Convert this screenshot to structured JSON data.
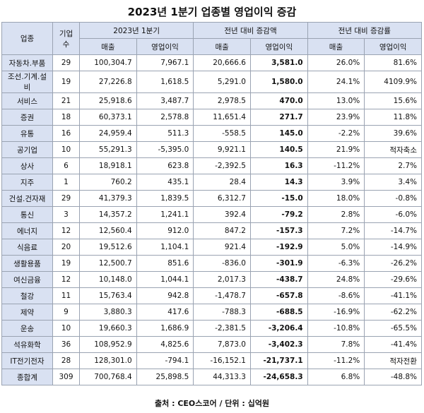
{
  "title": "2023년 1분기 업종별 영업이익 증감",
  "headers": {
    "industry": "업종",
    "count": "기업수",
    "group1": "2023년 1분기",
    "group2": "전년 대비 증감액",
    "group3": "전년 대비 증감률",
    "sales": "매출",
    "op": "영업이익"
  },
  "rows": [
    {
      "industry": "자동차.부품",
      "count": "29",
      "sales": "100,304.7",
      "op": "7,967.1",
      "d_sales": "20,666.6",
      "d_op": "3,581.0",
      "r_sales": "26.0%",
      "r_op": "81.6%"
    },
    {
      "industry": "조선.기계.설비",
      "count": "19",
      "sales": "27,226.8",
      "op": "1,618.5",
      "d_sales": "5,291.0",
      "d_op": "1,580.0",
      "r_sales": "24.1%",
      "r_op": "4109.9%"
    },
    {
      "industry": "서비스",
      "count": "21",
      "sales": "25,918.6",
      "op": "3,487.7",
      "d_sales": "2,978.5",
      "d_op": "470.0",
      "r_sales": "13.0%",
      "r_op": "15.6%"
    },
    {
      "industry": "증권",
      "count": "18",
      "sales": "60,373.1",
      "op": "2,578.8",
      "d_sales": "11,651.4",
      "d_op": "271.7",
      "r_sales": "23.9%",
      "r_op": "11.8%"
    },
    {
      "industry": "유통",
      "count": "16",
      "sales": "24,959.4",
      "op": "511.3",
      "d_sales": "-558.5",
      "d_op": "145.0",
      "r_sales": "-2.2%",
      "r_op": "39.6%"
    },
    {
      "industry": "공기업",
      "count": "10",
      "sales": "55,291.3",
      "op": "-5,395.0",
      "d_sales": "9,921.1",
      "d_op": "140.5",
      "r_sales": "21.9%",
      "r_op": "적자축소"
    },
    {
      "industry": "상사",
      "count": "6",
      "sales": "18,918.1",
      "op": "623.8",
      "d_sales": "-2,392.5",
      "d_op": "16.3",
      "r_sales": "-11.2%",
      "r_op": "2.7%"
    },
    {
      "industry": "지주",
      "count": "1",
      "sales": "760.2",
      "op": "435.1",
      "d_sales": "28.4",
      "d_op": "14.3",
      "r_sales": "3.9%",
      "r_op": "3.4%"
    },
    {
      "industry": "건설.건자재",
      "count": "29",
      "sales": "41,379.3",
      "op": "1,839.5",
      "d_sales": "6,312.7",
      "d_op": "-15.0",
      "r_sales": "18.0%",
      "r_op": "-0.8%"
    },
    {
      "industry": "통신",
      "count": "3",
      "sales": "14,357.2",
      "op": "1,241.1",
      "d_sales": "392.4",
      "d_op": "-79.2",
      "r_sales": "2.8%",
      "r_op": "-6.0%"
    },
    {
      "industry": "에너지",
      "count": "12",
      "sales": "12,560.4",
      "op": "912.0",
      "d_sales": "847.2",
      "d_op": "-157.3",
      "r_sales": "7.2%",
      "r_op": "-14.7%"
    },
    {
      "industry": "식음료",
      "count": "20",
      "sales": "19,512.6",
      "op": "1,104.1",
      "d_sales": "921.4",
      "d_op": "-192.9",
      "r_sales": "5.0%",
      "r_op": "-14.9%"
    },
    {
      "industry": "생활용품",
      "count": "19",
      "sales": "12,500.7",
      "op": "851.6",
      "d_sales": "-836.0",
      "d_op": "-301.9",
      "r_sales": "-6.3%",
      "r_op": "-26.2%"
    },
    {
      "industry": "여신금융",
      "count": "12",
      "sales": "10,148.0",
      "op": "1,044.1",
      "d_sales": "2,017.3",
      "d_op": "-438.7",
      "r_sales": "24.8%",
      "r_op": "-29.6%"
    },
    {
      "industry": "철강",
      "count": "11",
      "sales": "15,763.4",
      "op": "942.8",
      "d_sales": "-1,478.7",
      "d_op": "-657.8",
      "r_sales": "-8.6%",
      "r_op": "-41.1%"
    },
    {
      "industry": "제약",
      "count": "9",
      "sales": "3,880.3",
      "op": "417.6",
      "d_sales": "-788.3",
      "d_op": "-688.5",
      "r_sales": "-16.9%",
      "r_op": "-62.2%"
    },
    {
      "industry": "운송",
      "count": "10",
      "sales": "19,660.3",
      "op": "1,686.9",
      "d_sales": "-2,381.5",
      "d_op": "-3,206.4",
      "r_sales": "-10.8%",
      "r_op": "-65.5%"
    },
    {
      "industry": "석유화학",
      "count": "36",
      "sales": "108,952.9",
      "op": "4,825.6",
      "d_sales": "7,873.0",
      "d_op": "-3,402.3",
      "r_sales": "7.8%",
      "r_op": "-41.4%"
    },
    {
      "industry": "IT전기전자",
      "count": "28",
      "sales": "128,301.0",
      "op": "-794.1",
      "d_sales": "-16,152.1",
      "d_op": "-21,737.1",
      "r_sales": "-11.2%",
      "r_op": "적자전환"
    },
    {
      "industry": "종합계",
      "count": "309",
      "sales": "700,768.4",
      "op": "25,898.5",
      "d_sales": "44,313.3",
      "d_op": "-24,658.3",
      "r_sales": "6.8%",
      "r_op": "-48.8%"
    }
  ],
  "source": "출처 : CEO스코어 / 단위 : 십억원"
}
